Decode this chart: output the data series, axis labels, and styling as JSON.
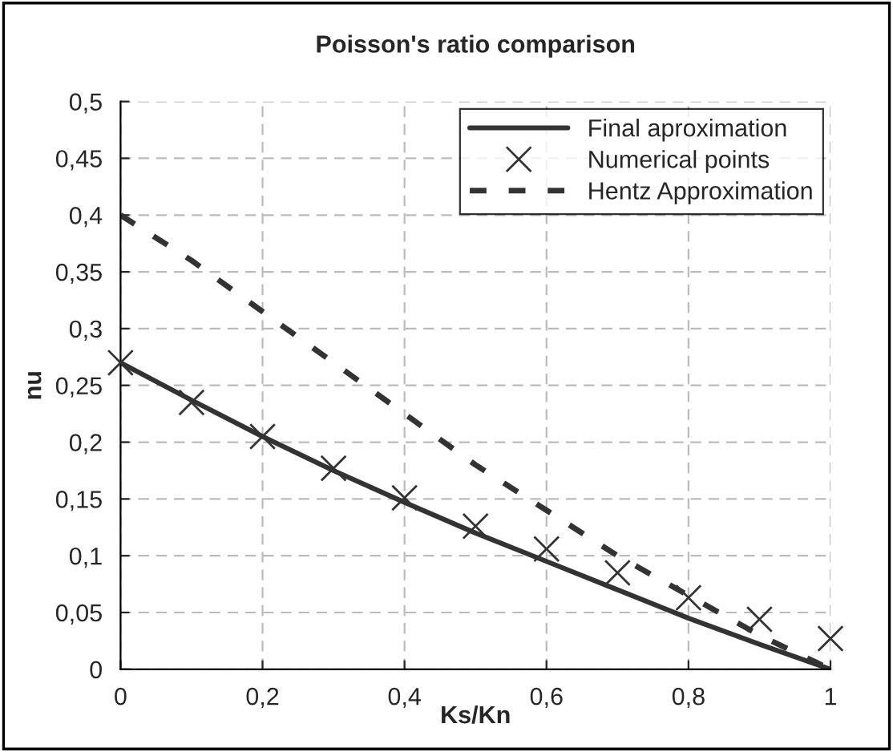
{
  "chart_data": {
    "type": "line",
    "title": "Poisson's ratio comparison",
    "xlabel": "Ks/Kn",
    "ylabel": "nu",
    "x": [
      0,
      0.1,
      0.2,
      0.3,
      0.4,
      0.5,
      0.6,
      0.7,
      0.8,
      0.9,
      1
    ],
    "series": [
      {
        "name": "Final aproximation",
        "color": "#333333",
        "line_style": "solid",
        "marker": "none",
        "values": [
          0.27,
          0.237,
          0.205,
          0.175,
          0.147,
          0.12,
          0.095,
          0.07,
          0.045,
          0.022,
          0
        ]
      },
      {
        "name": "Numerical points",
        "type": "scatter",
        "color": "#333333",
        "marker": "cross",
        "values": [
          0.27,
          0.235,
          0.205,
          0.177,
          0.151,
          0.126,
          0.106,
          0.085,
          0.063,
          0.044,
          0.027
        ]
      },
      {
        "name": "Hentz Approximation",
        "color": "#333333",
        "line_style": "dashed",
        "marker": "none",
        "values": [
          0.4,
          0.36,
          0.315,
          0.27,
          0.225,
          0.18,
          0.14,
          0.1,
          0.065,
          0.03,
          0
        ]
      }
    ],
    "xlim": [
      0,
      1
    ],
    "ylim": [
      0,
      0.5
    ],
    "xticks": [
      0,
      {
        "value": 0.2,
        "label": "0,2"
      },
      {
        "value": 0.4,
        "label": "0,4"
      },
      {
        "value": 0.6,
        "label": "0,6"
      },
      {
        "value": 0.8,
        "label": "0,8"
      },
      1
    ],
    "yticks": [
      0,
      {
        "value": 0.05,
        "label": "0,05"
      },
      {
        "value": 0.1,
        "label": "0,1"
      },
      {
        "value": 0.15,
        "label": "0,15"
      },
      {
        "value": 0.2,
        "label": "0,2"
      },
      {
        "value": 0.25,
        "label": "0,25"
      },
      {
        "value": 0.3,
        "label": "0,3"
      },
      {
        "value": 0.35,
        "label": "0,35"
      },
      {
        "value": 0.4,
        "label": "0,4"
      },
      {
        "value": 0.45,
        "label": "0,45"
      },
      {
        "value": 0.5,
        "label": "0,5"
      }
    ],
    "grid": true,
    "legend": "top right"
  }
}
